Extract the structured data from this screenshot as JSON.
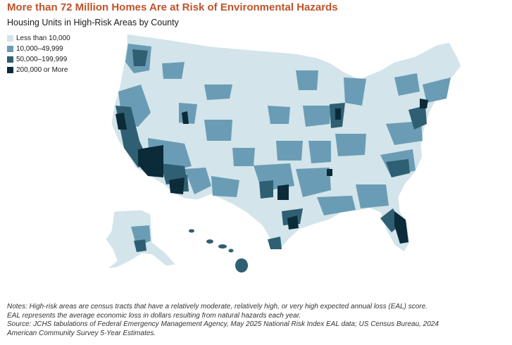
{
  "title": "More than 72 Million Homes Are at Risk of Environmental Hazards",
  "subtitle": "Housing Units in High-Risk Areas by County",
  "legend": [
    {
      "label": "Less than 10,000",
      "color": "#d3e4ea"
    },
    {
      "label": "10,000–49,999",
      "color": "#6a9db5"
    },
    {
      "label": "50,000–199,999",
      "color": "#2e5f73"
    },
    {
      "label": "200,000 or More",
      "color": "#0b2b38"
    }
  ],
  "notes": {
    "line1": "Notes: High-risk areas are census tracts that have a relatively moderate, relatively high, or very high expected annual loss (EAL) score.",
    "line2": "EAL represents the average economic loss in dollars resulting from natural hazards each year.",
    "line3": "Source: JCHS tabulations of Federal Emergency Management Agency, May 2025 National Risk Index EAL data; US Census Bureau, 2024",
    "line4": "American Community Survey 5-Year Estimates."
  }
}
